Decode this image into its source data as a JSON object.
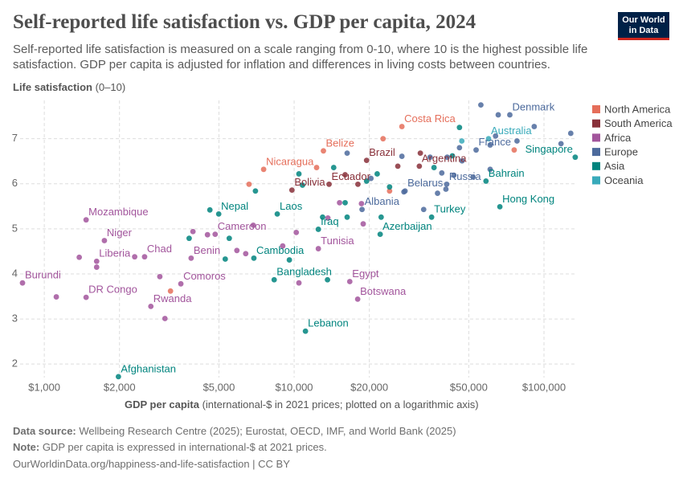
{
  "header": {
    "title": "Self-reported life satisfaction vs. GDP per capita, 2024",
    "subtitle": "Self-reported life satisfaction is measured on a scale ranging from 0-10, where 10 is the highest possible life satisfaction. GDP per capita is adjusted for inflation and differences in living costs between countries.",
    "logo": [
      "Our World",
      "in Data"
    ]
  },
  "chart_data": {
    "type": "scatter",
    "x_scale": "log",
    "grid": true,
    "y_label": "Life satisfaction",
    "y_label_unit": "(0–10)",
    "x_label": "GDP per capita",
    "x_label_unit": "(international-$ in 2021 prices; plotted on a logarithmic axis)",
    "xlim": [
      800,
      135000
    ],
    "xticks": [
      {
        "value": 1000,
        "label": "$1,000"
      },
      {
        "value": 2000,
        "label": "$2,000"
      },
      {
        "value": 5000,
        "label": "$5,000"
      },
      {
        "value": 10000,
        "label": "$10,000"
      },
      {
        "value": 20000,
        "label": "$20,000"
      },
      {
        "value": 50000,
        "label": "$50,000"
      },
      {
        "value": 100000,
        "label": "$100,000"
      }
    ],
    "ylim": [
      1.7,
      7.85
    ],
    "yticks": [
      2,
      3,
      4,
      5,
      6,
      7
    ],
    "series": [
      {
        "name": "North America",
        "color": "#e56e5a",
        "x": [
          27000,
          13100,
          7550,
          22700,
          76000,
          6600,
          12300,
          3200,
          24100
        ],
        "values": [
          7.27,
          6.73,
          6.32,
          7.0,
          6.75,
          5.99,
          6.36,
          3.62,
          5.84
        ],
        "labels": [
          "Costa Rica",
          "Belize",
          "Nicaragua",
          null,
          null,
          null,
          null,
          null,
          null
        ]
      },
      {
        "name": "South America",
        "color": "#883039",
        "x": [
          19500,
          31700,
          13800,
          9800,
          32000,
          26000,
          18000,
          16000
        ],
        "values": [
          6.52,
          6.39,
          5.99,
          5.86,
          6.68,
          6.39,
          5.99,
          6.2
        ],
        "labels": [
          "Brazil",
          "Argentina",
          "Ecuador",
          "Bolivia",
          null,
          null,
          null,
          null
        ]
      },
      {
        "name": "Africa",
        "color": "#a2559c",
        "x": [
          1470,
          1740,
          1620,
          2520,
          818,
          1470,
          2670,
          3520,
          3870,
          4830,
          12500,
          16700,
          17960,
          1117,
          1380,
          1620,
          2300,
          2900,
          3040,
          3935,
          4500,
          5900,
          6400,
          6860,
          9000,
          10200,
          10450,
          13650,
          18900,
          18600,
          15200
        ],
        "values": [
          5.2,
          4.74,
          4.28,
          4.38,
          3.8,
          3.48,
          3.28,
          3.78,
          4.35,
          4.88,
          4.56,
          3.83,
          3.44,
          3.49,
          4.37,
          4.15,
          4.38,
          3.94,
          3.01,
          4.94,
          4.87,
          4.52,
          4.45,
          5.08,
          4.62,
          4.92,
          3.8,
          5.24,
          5.11,
          5.56,
          5.58
        ],
        "labels": [
          "Mozambique",
          "Niger",
          "Liberia",
          "Chad",
          "Burundi",
          "DR Congo",
          "Rwanda",
          "Comoros",
          "Benin",
          "Cameroon",
          "Tunisia",
          "Egypt",
          "Botswana",
          null,
          null,
          null,
          null,
          null,
          null,
          null,
          null,
          null,
          null,
          null,
          null,
          null,
          null,
          null,
          null,
          null,
          null
        ]
      },
      {
        "name": "Europe",
        "color": "#4c6a9c",
        "x": [
          73000,
          53500,
          40800,
          27800,
          18700,
          55900,
          65600,
          91400,
          128000,
          117000,
          78000,
          45900,
          41000,
          47000,
          60900,
          16300,
          27000,
          35000,
          39000,
          40500,
          43600,
          37500,
          33000,
          27500,
          64000,
          60900,
          52000,
          20300
        ],
        "values": [
          7.53,
          6.75,
          5.99,
          5.84,
          5.43,
          7.75,
          7.53,
          7.27,
          7.12,
          6.89,
          6.95,
          6.8,
          6.59,
          6.51,
          6.86,
          6.68,
          6.61,
          6.59,
          6.24,
          5.88,
          6.19,
          5.79,
          5.43,
          5.82,
          7.06,
          6.32,
          6.15,
          6.12
        ],
        "labels": [
          "Denmark",
          "France",
          "Russia",
          "Belarus",
          "Albania",
          null,
          null,
          null,
          null,
          null,
          null,
          null,
          null,
          null,
          null,
          null,
          null,
          null,
          null,
          null,
          null,
          null,
          null,
          null,
          null,
          null,
          null,
          null
        ]
      },
      {
        "name": "Asia",
        "color": "#00847e",
        "x": [
          4990,
          8560,
          12500,
          22100,
          6900,
          8320,
          11100,
          1980,
          35500,
          58600,
          133400,
          66600,
          4600,
          3800,
          5500,
          5300,
          13600,
          14400,
          10450,
          10800,
          16300,
          16000,
          45900,
          36300,
          19500,
          24100,
          13000,
          22300,
          9570,
          7000,
          43000,
          21500
        ],
        "values": [
          5.33,
          5.33,
          4.99,
          4.88,
          4.35,
          3.87,
          2.73,
          1.72,
          5.26,
          6.06,
          6.59,
          5.49,
          5.42,
          4.79,
          4.79,
          4.33,
          3.87,
          6.36,
          6.22,
          5.97,
          5.26,
          5.58,
          7.25,
          6.36,
          6.06,
          5.93,
          5.26,
          5.26,
          4.31,
          5.84,
          6.62,
          6.22
        ],
        "labels": [
          "Nepal",
          "Laos",
          "Iraq",
          "Azerbaijan",
          "Cambodia",
          "Bangladesh",
          "Lebanon",
          "Afghanistan",
          "Turkey",
          "Bahrain",
          "Singapore",
          "Hong Kong",
          null,
          null,
          null,
          null,
          null,
          null,
          null,
          null,
          null,
          null,
          null,
          null,
          null,
          null,
          null,
          null,
          null,
          null,
          null,
          null
        ]
      },
      {
        "name": "Oceania",
        "color": "#38aaba",
        "x": [
          60000,
          46900
        ],
        "values": [
          7.0,
          6.95
        ],
        "labels": [
          "Australia",
          null
        ]
      }
    ]
  },
  "footer": {
    "source_label": "Data source:",
    "source": "Wellbeing Research Centre (2025); Eurostat, OECD, IMF, and World Bank (2025)",
    "note_label": "Note:",
    "note": "GDP per capita is expressed in international-$ at 2021 prices.",
    "url": "OurWorldinData.org/happiness-and-life-satisfaction | CC BY"
  }
}
